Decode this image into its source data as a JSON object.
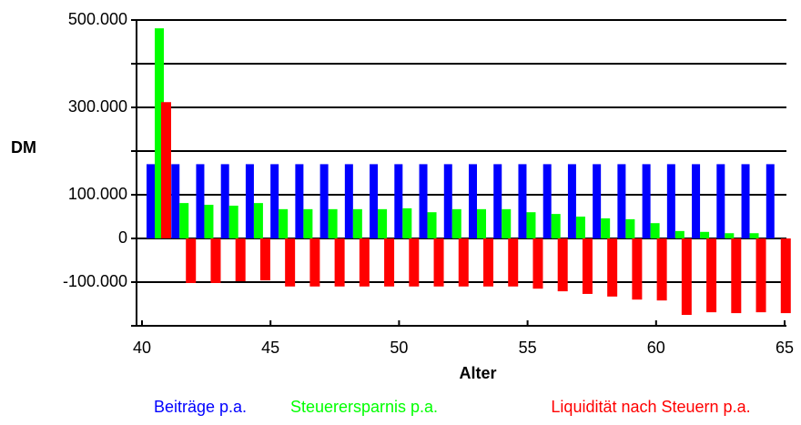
{
  "chart_data": {
    "type": "bar",
    "y_label": "DM",
    "x_label": "Alter",
    "x": [
      40,
      41,
      42,
      43,
      44,
      45,
      46,
      47,
      48,
      49,
      50,
      51,
      52,
      53,
      54,
      55,
      56,
      57,
      58,
      59,
      60,
      61,
      62,
      63,
      64,
      65
    ],
    "xlim": [
      40,
      65
    ],
    "xticks": [
      40,
      45,
      50,
      55,
      60,
      65
    ],
    "ylim": [
      -200000,
      500000
    ],
    "yticks": [
      {
        "value": 500000,
        "label": "500.000"
      },
      {
        "value": 300000,
        "label": "300.000"
      },
      {
        "value": 100000,
        "label": "100.000"
      },
      0,
      {
        "value": -100000,
        "label": "-100.000"
      }
    ],
    "minor_yticks": [
      400000,
      200000,
      -200000
    ],
    "grid": true,
    "series": [
      {
        "name": "Beiträge p.a.",
        "color": "#0000ff",
        "values": [
          170000,
          170000,
          170000,
          170000,
          170000,
          170000,
          170000,
          170000,
          170000,
          170000,
          170000,
          170000,
          170000,
          170000,
          170000,
          170000,
          170000,
          170000,
          170000,
          170000,
          170000,
          170000,
          170000,
          170000,
          170000,
          170000
        ]
      },
      {
        "name": "Steuerersparnis p.a.",
        "color": "#00ff00",
        "values": [
          481000,
          81000,
          77000,
          75000,
          81000,
          67000,
          67000,
          67000,
          67000,
          67000,
          69000,
          60000,
          67000,
          67000,
          67000,
          60000,
          56000,
          50000,
          46000,
          44000,
          35000,
          17000,
          15000,
          12000,
          12000,
          null
        ]
      },
      {
        "name": "Liquidität nach Steuern p.a.",
        "color": "#ff0000",
        "values": [
          312000,
          -102000,
          -102000,
          -98000,
          -96000,
          -110000,
          -110000,
          -110000,
          -110000,
          -110000,
          -110000,
          -110000,
          -110000,
          -110000,
          -110000,
          -115000,
          -121000,
          -127000,
          -133000,
          -140000,
          -142000,
          -175000,
          -169000,
          -171000,
          -169000,
          -171000
        ]
      }
    ]
  }
}
